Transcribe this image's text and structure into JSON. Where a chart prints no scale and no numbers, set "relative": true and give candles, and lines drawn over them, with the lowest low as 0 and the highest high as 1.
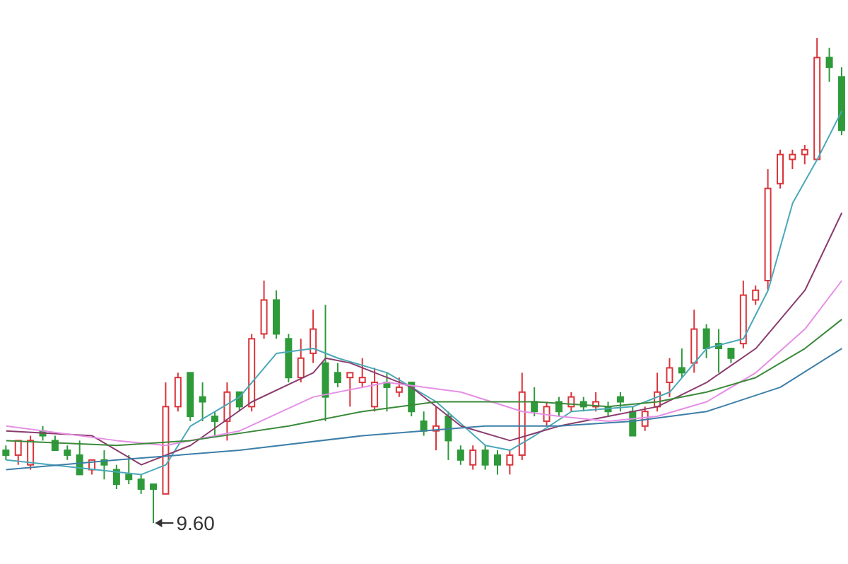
{
  "chart_data": {
    "type": "candlestick",
    "relative": true,
    "tick_labels": false,
    "categories": [
      null,
      null,
      null,
      null,
      null,
      null,
      null,
      null,
      null,
      null,
      null,
      null,
      null,
      null,
      null,
      null,
      null,
      null,
      null,
      null,
      null,
      null,
      null,
      null,
      null,
      null,
      null,
      null,
      null,
      null,
      null,
      null,
      null,
      null,
      null,
      null,
      null,
      null,
      null,
      null,
      null,
      null,
      null,
      null,
      null,
      null,
      null,
      null,
      null,
      null,
      null,
      null,
      null,
      null,
      null,
      null,
      null,
      null,
      null,
      null,
      null,
      null,
      null,
      null,
      null,
      null,
      null,
      null,
      null
    ],
    "ohlc": [
      [
        0.15,
        0.16,
        0.13,
        0.14
      ],
      [
        0.14,
        0.17,
        0.12,
        0.17
      ],
      [
        0.12,
        0.18,
        0.11,
        0.17
      ],
      [
        0.19,
        0.2,
        0.17,
        0.18
      ],
      [
        0.17,
        0.18,
        0.15,
        0.15
      ],
      [
        0.15,
        0.16,
        0.13,
        0.14
      ],
      [
        0.14,
        0.17,
        0.1,
        0.1
      ],
      [
        0.11,
        0.13,
        0.1,
        0.13
      ],
      [
        0.13,
        0.15,
        0.09,
        0.12
      ],
      [
        0.11,
        0.12,
        0.07,
        0.08
      ],
      [
        0.1,
        0.14,
        0.08,
        0.09
      ],
      [
        0.09,
        0.1,
        0.06,
        0.07
      ],
      [
        0.08,
        0.08,
        0,
        0.07
      ],
      [
        0.06,
        0.29,
        0.06,
        0.24
      ],
      [
        0.24,
        0.31,
        0.23,
        0.3
      ],
      [
        0.31,
        0.31,
        0.21,
        0.22
      ],
      [
        0.26,
        0.29,
        0.21,
        0.25
      ],
      [
        0.22,
        0.23,
        0.18,
        0.21
      ],
      [
        0.21,
        0.29,
        0.17,
        0.27
      ],
      [
        0.27,
        0.27,
        0.23,
        0.24
      ],
      [
        0.24,
        0.39,
        0.23,
        0.38
      ],
      [
        0.39,
        0.5,
        0.38,
        0.46
      ],
      [
        0.46,
        0.48,
        0.38,
        0.39
      ],
      [
        0.38,
        0.39,
        0.29,
        0.3
      ],
      [
        0.3,
        0.38,
        0.29,
        0.34
      ],
      [
        0.35,
        0.44,
        0.33,
        0.4
      ],
      [
        0.33,
        0.45,
        0.21,
        0.26
      ],
      [
        0.31,
        0.33,
        0.28,
        0.29
      ],
      [
        0.3,
        0.31,
        0.24,
        0.31
      ],
      [
        0.29,
        0.34,
        0.28,
        0.3
      ],
      [
        0.24,
        0.32,
        0.23,
        0.29
      ],
      [
        0.29,
        0.31,
        0.23,
        0.28
      ],
      [
        0.27,
        0.3,
        0.26,
        0.28
      ],
      [
        0.29,
        0.29,
        0.22,
        0.23
      ],
      [
        0.21,
        0.23,
        0.18,
        0.19
      ],
      [
        0.19,
        0.24,
        0.15,
        0.2
      ],
      [
        0.22,
        0.23,
        0.13,
        0.17
      ],
      [
        0.15,
        0.16,
        0.12,
        0.13
      ],
      [
        0.12,
        0.16,
        0.11,
        0.15
      ],
      [
        0.15,
        0.16,
        0.11,
        0.12
      ],
      [
        0.14,
        0.15,
        0.1,
        0.12
      ],
      [
        0.12,
        0.15,
        0.1,
        0.14
      ],
      [
        0.14,
        0.31,
        0.13,
        0.27
      ],
      [
        0.25,
        0.28,
        0.22,
        0.23
      ],
      [
        0.21,
        0.25,
        0.2,
        0.24
      ],
      [
        0.25,
        0.26,
        0.22,
        0.23
      ],
      [
        0.24,
        0.27,
        0.23,
        0.26
      ],
      [
        0.25,
        0.26,
        0.23,
        0.24
      ],
      [
        0.24,
        0.27,
        0.23,
        0.25
      ],
      [
        0.24,
        0.25,
        0.22,
        0.23
      ],
      [
        0.26,
        0.27,
        0.23,
        0.25
      ],
      [
        0.23,
        0.24,
        0.18,
        0.18
      ],
      [
        0.2,
        0.24,
        0.19,
        0.23
      ],
      [
        0.24,
        0.31,
        0.23,
        0.27
      ],
      [
        0.29,
        0.34,
        0.26,
        0.32
      ],
      [
        0.32,
        0.36,
        0.3,
        0.31
      ],
      [
        0.33,
        0.44,
        0.31,
        0.4
      ],
      [
        0.4,
        0.41,
        0.34,
        0.36
      ],
      [
        0.37,
        0.4,
        0.31,
        0.36
      ],
      [
        0.36,
        0.36,
        0.33,
        0.34
      ],
      [
        0.37,
        0.5,
        0.36,
        0.47
      ],
      [
        0.46,
        0.49,
        0.45,
        0.48
      ],
      [
        0.5,
        0.73,
        0.48,
        0.69
      ],
      [
        0.7,
        0.77,
        0.69,
        0.76
      ],
      [
        0.75,
        0.77,
        0.73,
        0.76
      ],
      [
        0.76,
        0.78,
        0.74,
        0.77
      ],
      [
        0.75,
        1,
        0.75,
        0.96
      ],
      [
        0.96,
        0.98,
        0.91,
        0.94
      ],
      [
        0.92,
        0.94,
        0.8,
        0.81
      ]
    ],
    "colors": [
      "#2e9a3a",
      "#d9343a",
      "#d9343a",
      "#2e9a3a",
      "#2e9a3a",
      "#2e9a3a",
      "#2e9a3a",
      "#d9343a",
      "#2e9a3a",
      "#2e9a3a",
      "#2e9a3a",
      "#2e9a3a",
      "#2e9a3a",
      "#d9343a",
      "#d9343a",
      "#2e9a3a",
      "#2e9a3a",
      "#2e9a3a",
      "#d9343a",
      "#2e9a3a",
      "#d9343a",
      "#d9343a",
      "#2e9a3a",
      "#2e9a3a",
      "#d9343a",
      "#d9343a",
      "#2e9a3a",
      "#2e9a3a",
      "#d9343a",
      "#d9343a",
      "#d9343a",
      "#2e9a3a",
      "#d9343a",
      "#2e9a3a",
      "#2e9a3a",
      "#d9343a",
      "#2e9a3a",
      "#2e9a3a",
      "#d9343a",
      "#2e9a3a",
      "#2e9a3a",
      "#d9343a",
      "#d9343a",
      "#2e9a3a",
      "#d9343a",
      "#2e9a3a",
      "#d9343a",
      "#2e9a3a",
      "#d9343a",
      "#2e9a3a",
      "#2e9a3a",
      "#2e9a3a",
      "#d9343a",
      "#d9343a",
      "#d9343a",
      "#2e9a3a",
      "#d9343a",
      "#2e9a3a",
      "#2e9a3a",
      "#2e9a3a",
      "#d9343a",
      "#d9343a",
      "#d9343a",
      "#d9343a",
      "#d9343a",
      "#d9343a",
      "#d9343a",
      "#2e9a3a",
      "#2e9a3a"
    ],
    "series": [
      {
        "type": "line",
        "color": "#4aa8b8",
        "values": [
          0.13,
          null,
          null,
          null,
          null,
          null,
          null,
          null,
          null,
          null,
          null,
          0.1,
          null,
          0.12,
          null,
          0.2,
          null,
          null,
          null,
          0.26,
          null,
          null,
          0.35,
          null,
          null,
          0.36,
          null,
          0.34,
          null,
          null,
          null,
          0.31,
          null,
          null,
          null,
          0.25,
          null,
          null,
          null,
          0.16,
          null,
          0.15,
          null,
          0.18,
          null,
          null,
          0.23,
          null,
          null,
          null,
          null,
          0.24,
          null,
          null,
          0.27,
          null,
          null,
          0.36,
          null,
          null,
          0.38,
          null,
          0.48,
          null,
          0.66,
          null,
          0.75,
          null,
          0.85
        ]
      },
      {
        "type": "line",
        "color": "#8a3c6e",
        "values": [
          0.19,
          null,
          null,
          null,
          null,
          null,
          null,
          0.18,
          null,
          null,
          null,
          0.12,
          null,
          null,
          null,
          0.16,
          null,
          null,
          null,
          null,
          0.25,
          null,
          null,
          null,
          null,
          0.31,
          0.34,
          null,
          0.33,
          null,
          null,
          null,
          null,
          0.28,
          null,
          null,
          null,
          0.2,
          null,
          null,
          null,
          0.17,
          null,
          null,
          null,
          0.2,
          null,
          null,
          null,
          0.22,
          null,
          null,
          null,
          0.24,
          null,
          null,
          null,
          0.29,
          null,
          null,
          null,
          0.36,
          null,
          null,
          null,
          0.48,
          null,
          null,
          0.64
        ]
      },
      {
        "type": "line",
        "color": "#e58fe5",
        "values": [
          0.2,
          null,
          null,
          null,
          null,
          null,
          null,
          null,
          null,
          0.17,
          null,
          null,
          null,
          0.16,
          null,
          null,
          null,
          null,
          null,
          0.19,
          null,
          null,
          null,
          null,
          null,
          0.26,
          null,
          null,
          null,
          null,
          null,
          0.29,
          null,
          null,
          null,
          null,
          null,
          0.27,
          null,
          null,
          null,
          null,
          0.23,
          null,
          null,
          0.22,
          null,
          null,
          null,
          0.21,
          null,
          null,
          null,
          0.22,
          null,
          null,
          null,
          0.25,
          null,
          null,
          null,
          0.31,
          null,
          null,
          null,
          0.4,
          null,
          null,
          0.5
        ]
      },
      {
        "type": "line",
        "color": "#3a8a3a",
        "values": [
          0.17,
          null,
          null,
          null,
          null,
          null,
          null,
          null,
          null,
          0.16,
          null,
          null,
          null,
          null,
          null,
          0.17,
          null,
          null,
          null,
          null,
          null,
          null,
          null,
          0.2,
          null,
          null,
          null,
          null,
          null,
          0.23,
          null,
          null,
          null,
          null,
          null,
          0.25,
          null,
          null,
          null,
          null,
          null,
          null,
          null,
          0.25,
          null,
          null,
          null,
          null,
          null,
          0.24,
          null,
          null,
          null,
          0.25,
          null,
          null,
          null,
          0.27,
          null,
          null,
          null,
          0.3,
          null,
          null,
          null,
          0.36,
          null,
          null,
          0.42
        ]
      },
      {
        "type": "line",
        "color": "#3d7fa8",
        "values": [
          0.11,
          null,
          null,
          null,
          null,
          null,
          null,
          null,
          null,
          0.13,
          null,
          null,
          null,
          null,
          null,
          null,
          null,
          null,
          null,
          0.15,
          null,
          null,
          null,
          null,
          null,
          null,
          null,
          null,
          null,
          0.18,
          null,
          null,
          null,
          null,
          null,
          null,
          null,
          null,
          null,
          0.2,
          null,
          null,
          null,
          null,
          null,
          0.2,
          null,
          null,
          null,
          null,
          null,
          0.21,
          null,
          null,
          null,
          null,
          null,
          0.23,
          null,
          null,
          null,
          null,
          null,
          0.28,
          null,
          null,
          null,
          null,
          0.36
        ]
      }
    ],
    "annotations": [
      "9.60"
    ]
  }
}
